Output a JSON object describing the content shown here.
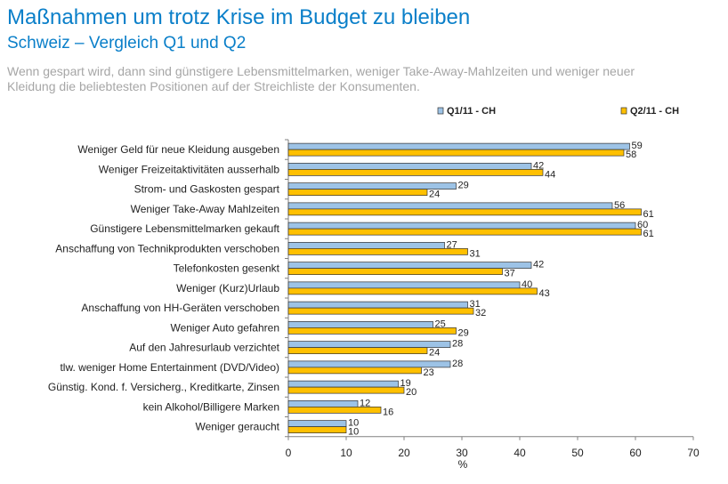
{
  "header": {
    "title": "Maßnahmen um trotz Krise im Budget zu bleiben",
    "subtitle": "Schweiz – Vergleich Q1 und Q2",
    "description": "Wenn gespart wird, dann sind günstigere Lebensmittelmarken, weniger Take-Away-Mahlzeiten und weniger neuer Kleidung die beliebtesten Positionen auf der Streichliste der Konsumenten."
  },
  "chart_data": {
    "type": "bar",
    "orientation": "horizontal",
    "categories": [
      "Weniger Geld für neue Kleidung ausgeben",
      "Weniger Freizeitaktivitäten ausserhalb",
      "Strom- und Gaskosten gespart",
      "Weniger Take-Away Mahlzeiten",
      "Günstigere Lebensmittelmarken gekauft",
      "Anschaffung von Technikprodukten verschoben",
      "Telefonkosten gesenkt",
      "Weniger (Kurz)Urlaub",
      "Anschaffung von HH-Geräten verschoben",
      "Weniger Auto gefahren",
      "Auf den Jahresurlaub verzichtet",
      "tlw. weniger Home Entertainment (DVD/Video)",
      "Günstig. Kond. f. Versicherg., Kreditkarte, Zinsen",
      "kein Alkohol/Billigere Marken",
      "Weniger geraucht"
    ],
    "series": [
      {
        "name": "Q1/11 - CH",
        "color": "#9dc3e6",
        "values": [
          59,
          42,
          29,
          56,
          60,
          27,
          42,
          40,
          31,
          25,
          28,
          28,
          19,
          12,
          10
        ]
      },
      {
        "name": "Q2/11 - CH",
        "color": "#ffc000",
        "values": [
          58,
          44,
          24,
          61,
          61,
          31,
          37,
          43,
          32,
          29,
          24,
          23,
          20,
          16,
          10
        ]
      }
    ],
    "xlabel": "%",
    "xlim": [
      0,
      70
    ],
    "xticks": [
      0,
      10,
      20,
      30,
      40,
      50,
      60,
      70
    ],
    "legend": "top-right",
    "grid": false
  }
}
